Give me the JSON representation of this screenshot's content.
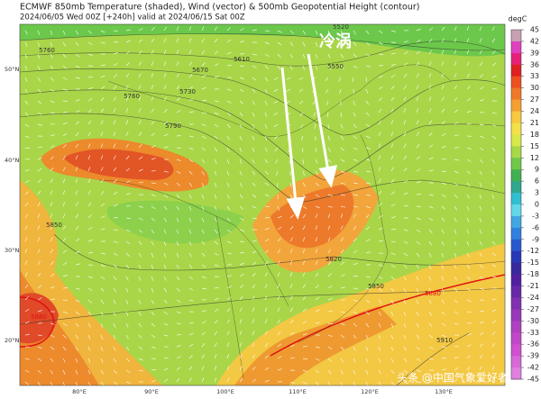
{
  "header": {
    "title": "ECMWF 850mb Temperature (shaded), Wind (vector) & 500mb Geopotential Height (contour)",
    "subtitle": "2024/06/05 Wed 00Z [+240h] valid at 2024/06/15 Sat 00Z"
  },
  "colorbar": {
    "label": "degC",
    "ticks": [
      45,
      42,
      39,
      36,
      33,
      30,
      27,
      24,
      21,
      18,
      15,
      12,
      9,
      6,
      3,
      0,
      -3,
      -6,
      -9,
      -12,
      -15,
      -18,
      -21,
      -24,
      -27,
      -30,
      -33,
      -36,
      -39,
      -42,
      -45
    ]
  },
  "lat_labels": [
    "50°N",
    "40°N",
    "30°N",
    "20°N"
  ],
  "lon_labels": [
    "80°E",
    "90°E",
    "100°E",
    "110°E",
    "120°E",
    "130°E"
  ],
  "contour_labels": [
    5520,
    5760,
    5610,
    5550,
    5670,
    5730,
    5760,
    5790,
    5850,
    5820,
    5850,
    5880,
    5880,
    5910
  ],
  "annotation": "冷涡",
  "watermark": "头条 @中国气象爱好者"
}
